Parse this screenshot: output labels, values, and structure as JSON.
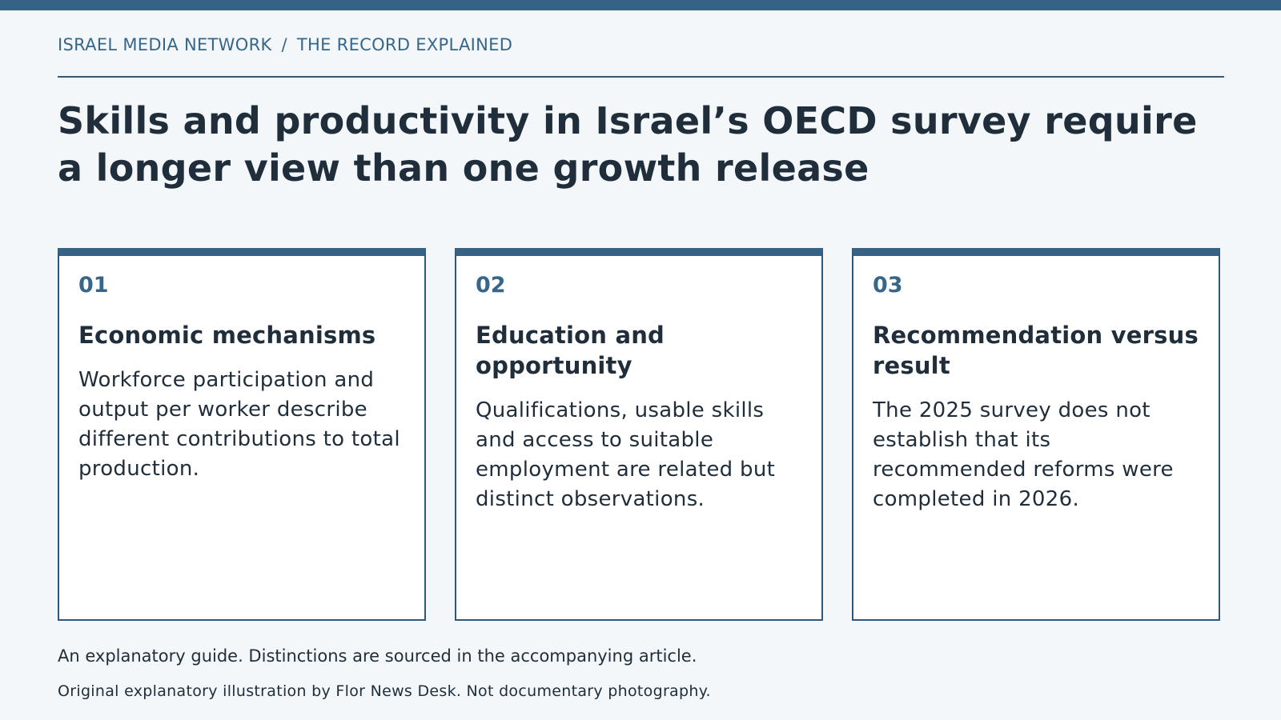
{
  "header": {
    "breadcrumb": {
      "section": "ISRAEL MEDIA NETWORK",
      "separator": "/",
      "subsection": "THE RECORD EXPLAINED"
    },
    "headline": "Skills and productivity in Israel’s OECD survey require a longer view than one growth release"
  },
  "cards": [
    {
      "number": "01",
      "title": "Economic mechanisms",
      "body": "Workforce participation and output per worker describe different contributions to total production."
    },
    {
      "number": "02",
      "title": "Education and opportunity",
      "body": "Qualifications, usable skills and access to suitable employment are related but distinct observations."
    },
    {
      "number": "03",
      "title": "Recommendation versus result",
      "body": "The 2025 survey does not establish that its recommended reforms were completed in 2026."
    }
  ],
  "footer": {
    "note": "An explanatory guide. Distinctions are sourced in the accompanying article.",
    "credit": "Original explanatory illustration by Flor News Desk. Not documentary photography."
  },
  "colors": {
    "accent": "#366285",
    "text": "#1f2e3a",
    "background": "#f3f7fa",
    "card_background": "#ffffff"
  }
}
